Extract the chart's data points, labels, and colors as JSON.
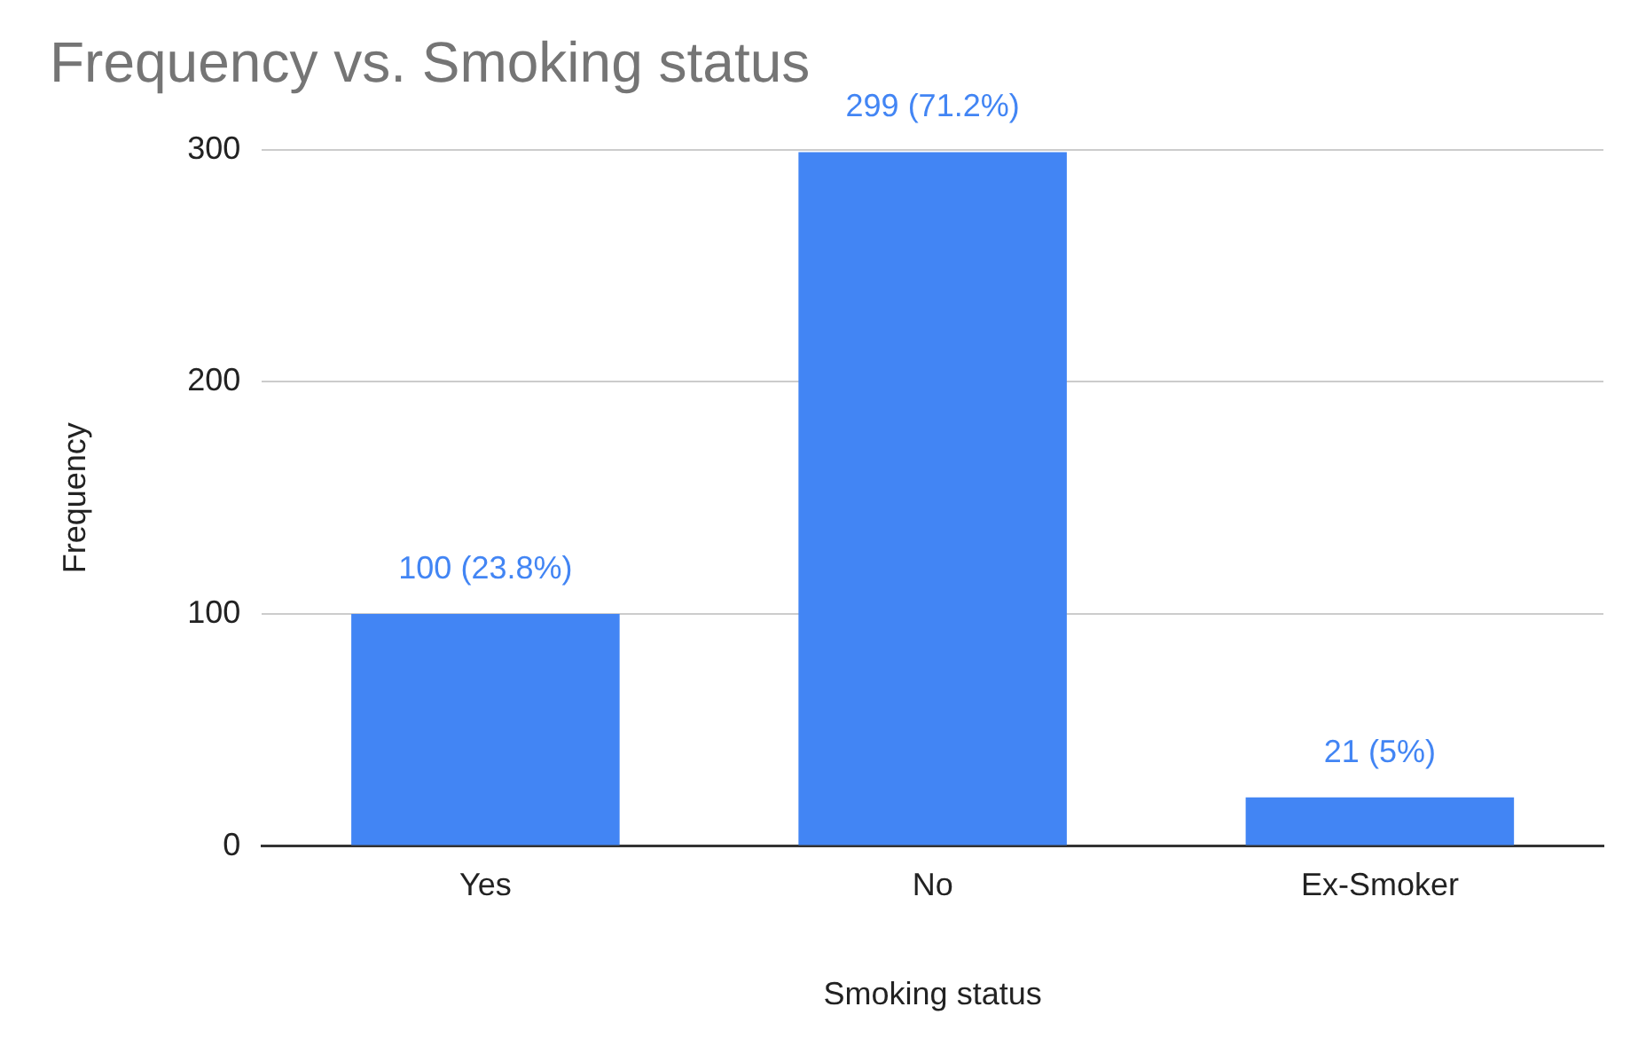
{
  "chart_data": {
    "type": "bar",
    "title": "Frequency vs. Smoking status",
    "xlabel": "Smoking status",
    "ylabel": "Frequency",
    "categories": [
      "Yes",
      "No",
      "Ex-Smoker"
    ],
    "values": [
      100,
      299,
      21
    ],
    "value_labels": [
      "100 (23.8%)",
      "299 (71.2%)",
      "21 (5%)"
    ],
    "color": "#4285f4",
    "ylim": [
      0,
      300
    ],
    "yticks": [
      0,
      100,
      200,
      300
    ],
    "grid": "y"
  }
}
